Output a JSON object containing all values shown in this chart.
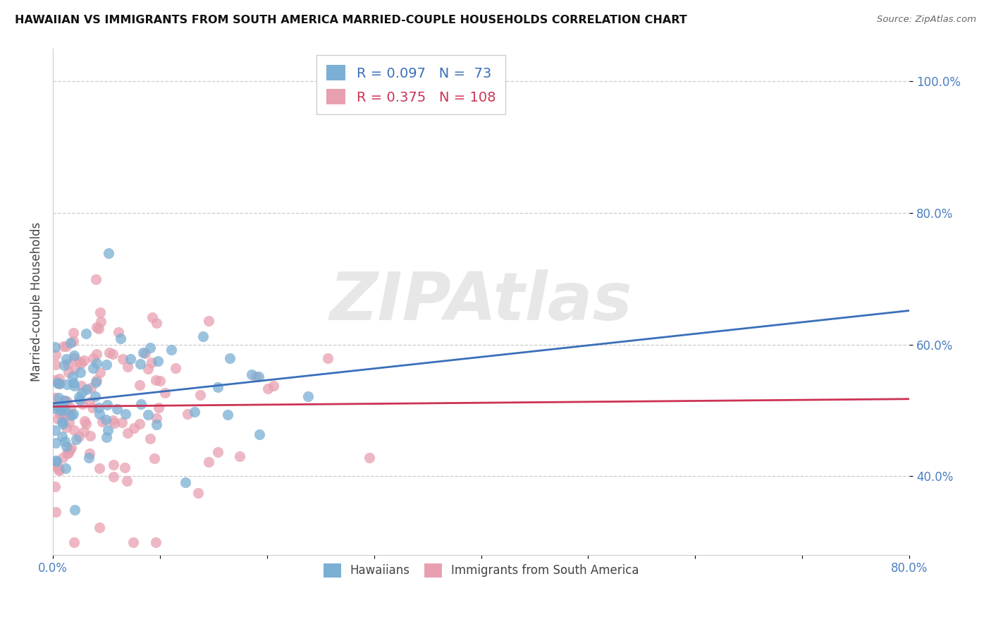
{
  "title": "HAWAIIAN VS IMMIGRANTS FROM SOUTH AMERICA MARRIED-COUPLE HOUSEHOLDS CORRELATION CHART",
  "source": "Source: ZipAtlas.com",
  "ylabel": "Married-couple Households",
  "xlim": [
    0.0,
    0.8
  ],
  "ylim": [
    0.28,
    1.05
  ],
  "ytick_vals": [
    0.4,
    0.6,
    0.8,
    1.0
  ],
  "xtick_vals": [
    0.0,
    0.1,
    0.2,
    0.3,
    0.4,
    0.5,
    0.6,
    0.7,
    0.8
  ],
  "xtick_labels": [
    "0.0%",
    "",
    "",
    "",
    "",
    "",
    "",
    "",
    "80.0%"
  ],
  "legend_blue_R": "0.097",
  "legend_blue_N": "73",
  "legend_pink_R": "0.375",
  "legend_pink_N": "108",
  "blue_color": "#7bafd4",
  "pink_color": "#e8a0b0",
  "blue_line": "#3a6fba",
  "pink_line": "#cc3355",
  "watermark": "ZIPAtlas",
  "blue_N": 73,
  "pink_N": 108,
  "blue_R": 0.097,
  "pink_R": 0.375,
  "ytick_color": "#4a7fc1",
  "xtick_color": "#4a7fc1"
}
